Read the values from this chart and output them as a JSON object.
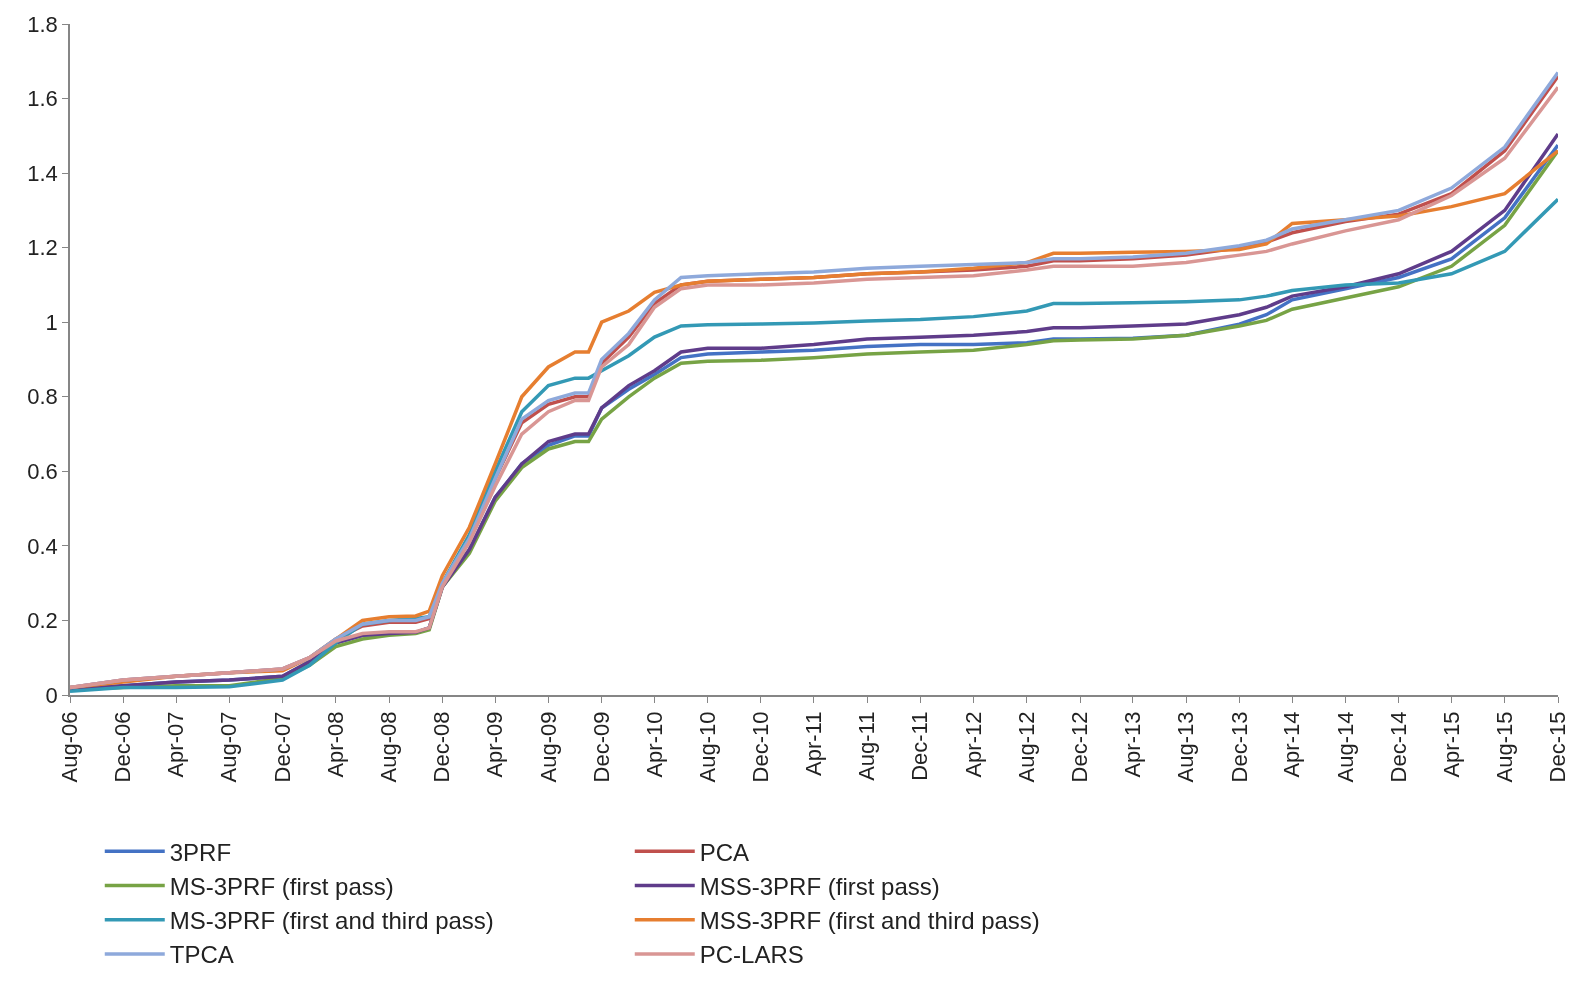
{
  "chart_data": {
    "type": "line",
    "x": [
      "2006-08",
      "2006-12",
      "2007-04",
      "2007-08",
      "2007-12",
      "2008-02",
      "2008-04",
      "2008-06",
      "2008-08",
      "2008-10",
      "2008-11",
      "2008-12",
      "2009-02",
      "2009-04",
      "2009-06",
      "2009-08",
      "2009-10",
      "2009-11",
      "2009-12",
      "2010-02",
      "2010-04",
      "2010-06",
      "2010-08",
      "2010-12",
      "2011-04",
      "2011-08",
      "2011-12",
      "2012-04",
      "2012-08",
      "2012-10",
      "2012-12",
      "2013-04",
      "2013-08",
      "2013-12",
      "2014-02",
      "2014-04",
      "2014-08",
      "2014-12",
      "2015-04",
      "2015-08",
      "2015-12"
    ],
    "series": [
      {
        "name": "3PRF",
        "color": "#4472c4",
        "values": [
          0.015,
          0.025,
          0.035,
          0.04,
          0.05,
          0.09,
          0.14,
          0.16,
          0.165,
          0.168,
          0.18,
          0.29,
          0.39,
          0.53,
          0.62,
          0.67,
          0.695,
          0.695,
          0.77,
          0.82,
          0.86,
          0.905,
          0.915,
          0.92,
          0.925,
          0.935,
          0.94,
          0.94,
          0.945,
          0.955,
          0.955,
          0.957,
          0.965,
          0.995,
          1.02,
          1.06,
          1.09,
          1.12,
          1.17,
          1.28,
          1.475
        ]
      },
      {
        "name": "PCA",
        "color": "#c0504d",
        "values": [
          0.02,
          0.04,
          0.05,
          0.06,
          0.07,
          0.1,
          0.15,
          0.185,
          0.195,
          0.195,
          0.205,
          0.3,
          0.42,
          0.58,
          0.73,
          0.78,
          0.8,
          0.8,
          0.89,
          0.96,
          1.05,
          1.1,
          1.11,
          1.115,
          1.12,
          1.13,
          1.135,
          1.14,
          1.15,
          1.165,
          1.165,
          1.17,
          1.18,
          1.2,
          1.215,
          1.24,
          1.27,
          1.29,
          1.345,
          1.46,
          1.66
        ]
      },
      {
        "name": "MS-3PRF (first pass)",
        "color": "#77a345",
        "values": [
          0.015,
          0.02,
          0.025,
          0.025,
          0.045,
          0.08,
          0.13,
          0.15,
          0.16,
          0.165,
          0.175,
          0.29,
          0.38,
          0.52,
          0.61,
          0.66,
          0.68,
          0.68,
          0.74,
          0.8,
          0.85,
          0.89,
          0.895,
          0.898,
          0.905,
          0.915,
          0.92,
          0.925,
          0.94,
          0.95,
          0.952,
          0.955,
          0.965,
          0.99,
          1.005,
          1.035,
          1.065,
          1.095,
          1.15,
          1.26,
          1.46
        ]
      },
      {
        "name": "MSS-3PRF (first pass)",
        "color": "#5f3c8a",
        "values": [
          0.015,
          0.025,
          0.035,
          0.04,
          0.05,
          0.09,
          0.14,
          0.16,
          0.165,
          0.168,
          0.18,
          0.29,
          0.39,
          0.53,
          0.62,
          0.68,
          0.7,
          0.7,
          0.77,
          0.83,
          0.87,
          0.92,
          0.93,
          0.93,
          0.94,
          0.955,
          0.96,
          0.965,
          0.975,
          0.985,
          0.985,
          0.99,
          0.995,
          1.02,
          1.04,
          1.07,
          1.095,
          1.13,
          1.19,
          1.3,
          1.505
        ]
      },
      {
        "name": "MS-3PRF (first and third pass)",
        "color": "#3399b5",
        "values": [
          0.01,
          0.02,
          0.02,
          0.022,
          0.04,
          0.08,
          0.14,
          0.19,
          0.2,
          0.205,
          0.21,
          0.3,
          0.43,
          0.6,
          0.76,
          0.83,
          0.85,
          0.85,
          0.87,
          0.91,
          0.96,
          0.99,
          0.993,
          0.995,
          0.998,
          1.003,
          1.007,
          1.015,
          1.03,
          1.05,
          1.05,
          1.052,
          1.055,
          1.06,
          1.07,
          1.085,
          1.1,
          1.105,
          1.13,
          1.19,
          1.33
        ]
      },
      {
        "name": "MSS-3PRF (first and third pass)",
        "color": "#e67e30",
        "values": [
          0.02,
          0.035,
          0.05,
          0.06,
          0.065,
          0.1,
          0.15,
          0.2,
          0.21,
          0.212,
          0.225,
          0.32,
          0.45,
          0.62,
          0.8,
          0.88,
          0.92,
          0.92,
          1.0,
          1.03,
          1.08,
          1.1,
          1.11,
          1.115,
          1.12,
          1.13,
          1.135,
          1.145,
          1.16,
          1.185,
          1.185,
          1.188,
          1.19,
          1.195,
          1.21,
          1.265,
          1.275,
          1.285,
          1.31,
          1.345,
          1.46
        ]
      },
      {
        "name": "TPCA",
        "color": "#8ea9db",
        "values": [
          0.02,
          0.04,
          0.05,
          0.06,
          0.07,
          0.1,
          0.15,
          0.19,
          0.2,
          0.2,
          0.21,
          0.3,
          0.42,
          0.58,
          0.74,
          0.79,
          0.81,
          0.81,
          0.9,
          0.97,
          1.06,
          1.12,
          1.125,
          1.13,
          1.135,
          1.145,
          1.15,
          1.155,
          1.16,
          1.17,
          1.17,
          1.175,
          1.185,
          1.205,
          1.22,
          1.25,
          1.275,
          1.3,
          1.36,
          1.47,
          1.67
        ]
      },
      {
        "name": "PC-LARS",
        "color": "#d99694",
        "values": [
          0.02,
          0.04,
          0.05,
          0.06,
          0.07,
          0.1,
          0.145,
          0.165,
          0.17,
          0.17,
          0.18,
          0.29,
          0.41,
          0.56,
          0.7,
          0.76,
          0.79,
          0.79,
          0.88,
          0.94,
          1.04,
          1.09,
          1.1,
          1.1,
          1.105,
          1.115,
          1.12,
          1.125,
          1.14,
          1.15,
          1.15,
          1.15,
          1.16,
          1.18,
          1.19,
          1.21,
          1.245,
          1.275,
          1.34,
          1.44,
          1.63
        ]
      }
    ],
    "xlim": [
      "2006-08",
      "2015-12"
    ],
    "xticks": [
      {
        "value": "2006-08",
        "label": "Aug-06"
      },
      {
        "value": "2006-12",
        "label": "Dec-06"
      },
      {
        "value": "2007-04",
        "label": "Apr-07"
      },
      {
        "value": "2007-08",
        "label": "Aug-07"
      },
      {
        "value": "2007-12",
        "label": "Dec-07"
      },
      {
        "value": "2008-04",
        "label": "Apr-08"
      },
      {
        "value": "2008-08",
        "label": "Aug-08"
      },
      {
        "value": "2008-12",
        "label": "Dec-08"
      },
      {
        "value": "2009-04",
        "label": "Apr-09"
      },
      {
        "value": "2009-08",
        "label": "Aug-09"
      },
      {
        "value": "2009-12",
        "label": "Dec-09"
      },
      {
        "value": "2010-04",
        "label": "Apr-10"
      },
      {
        "value": "2010-08",
        "label": "Aug-10"
      },
      {
        "value": "2010-12",
        "label": "Dec-10"
      },
      {
        "value": "2011-04",
        "label": "Apr-11"
      },
      {
        "value": "2011-08",
        "label": "Aug-11"
      },
      {
        "value": "2011-12",
        "label": "Dec-11"
      },
      {
        "value": "2012-04",
        "label": "Apr-12"
      },
      {
        "value": "2012-08",
        "label": "Aug-12"
      },
      {
        "value": "2012-12",
        "label": "Dec-12"
      },
      {
        "value": "2013-04",
        "label": "Apr-13"
      },
      {
        "value": "2013-08",
        "label": "Aug-13"
      },
      {
        "value": "2013-12",
        "label": "Dec-13"
      },
      {
        "value": "2014-04",
        "label": "Apr-14"
      },
      {
        "value": "2014-08",
        "label": "Aug-14"
      },
      {
        "value": "2014-12",
        "label": "Dec-14"
      },
      {
        "value": "2015-04",
        "label": "Apr-15"
      },
      {
        "value": "2015-08",
        "label": "Aug-15"
      },
      {
        "value": "2015-12",
        "label": "Dec-15"
      }
    ],
    "ylim": [
      0,
      1.8
    ],
    "yticks": [
      0,
      0.2,
      0.4,
      0.6,
      0.8,
      1,
      1.2,
      1.4,
      1.6,
      1.8
    ],
    "legend": "bottom",
    "grid": false,
    "marker": "none",
    "line_style": "solid"
  }
}
